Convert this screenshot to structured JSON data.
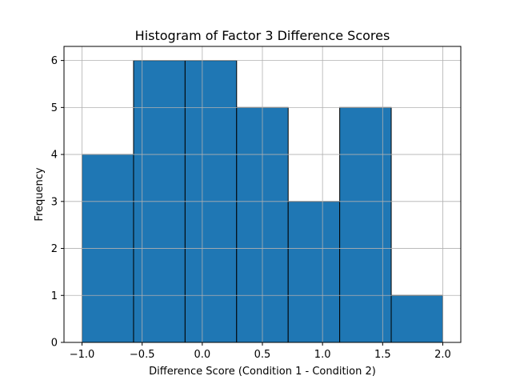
{
  "chart_data": {
    "type": "bar",
    "title": "Histogram of Factor 3 Difference Scores",
    "xlabel": "Difference Score (Condition 1 - Condition 2)",
    "ylabel": "Frequency",
    "bin_edges": [
      -1.0,
      -0.5714,
      -0.1429,
      0.2857,
      0.7143,
      1.1429,
      1.5714,
      2.0
    ],
    "values": [
      4,
      6,
      6,
      5,
      3,
      5,
      1
    ],
    "xlim": [
      -1.15,
      2.15
    ],
    "ylim": [
      0,
      6.3
    ],
    "xticks": [
      -1.0,
      -0.5,
      0.0,
      0.5,
      1.0,
      1.5,
      2.0
    ],
    "xtick_labels": [
      "−1.0",
      "−0.5",
      "0.0",
      "0.5",
      "1.0",
      "1.5",
      "2.0"
    ],
    "yticks": [
      0,
      1,
      2,
      3,
      4,
      5,
      6
    ],
    "ytick_labels": [
      "0",
      "1",
      "2",
      "3",
      "4",
      "5",
      "6"
    ],
    "grid": true,
    "bar_color": "#1f77b4",
    "edge_color": "#000000"
  }
}
